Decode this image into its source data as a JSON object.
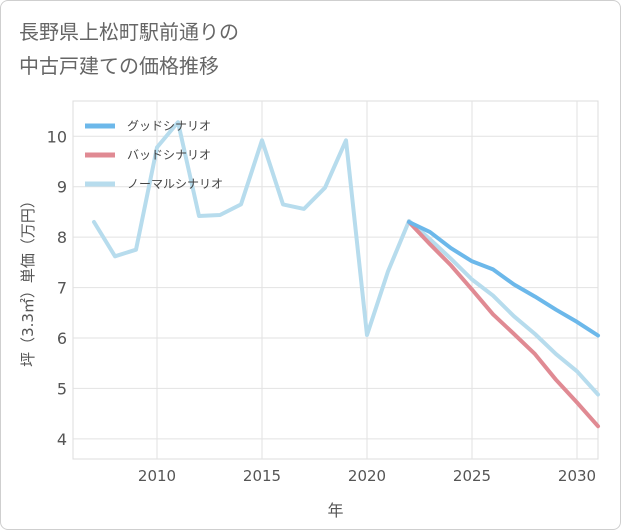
{
  "title": "長野県上松町駅前通りの\n中古戸建ての価格推移",
  "chart_data": {
    "type": "line",
    "title": "長野県上松町駅前通りの中古戸建ての価格推移",
    "xlabel": "年",
    "ylabel": "坪（3.3㎡）単価（万円）",
    "xlim": [
      2006,
      2031
    ],
    "ylim": [
      3.6,
      10.7
    ],
    "xticks": [
      2010,
      2015,
      2020,
      2025,
      2030
    ],
    "yticks": [
      4,
      5,
      6,
      7,
      8,
      9,
      10
    ],
    "grid": true,
    "legend_position": "top-left",
    "series": [
      {
        "name": "グッドシナリオ",
        "color": "#6cb8ea",
        "x": [
          2022,
          2023,
          2024,
          2025,
          2026,
          2027,
          2028,
          2029,
          2030,
          2031
        ],
        "values": [
          8.3,
          8.1,
          7.78,
          7.52,
          7.36,
          7.06,
          6.82,
          6.56,
          6.32,
          6.05
        ]
      },
      {
        "name": "バッドシナリオ",
        "color": "#e08a93",
        "x": [
          2022,
          2023,
          2024,
          2025,
          2026,
          2027,
          2028,
          2029,
          2030,
          2031
        ],
        "values": [
          8.3,
          7.86,
          7.44,
          6.96,
          6.47,
          6.08,
          5.68,
          5.17,
          4.72,
          4.25
        ]
      },
      {
        "name": "ノーマルシナリオ",
        "color": "#b7dced",
        "x": [
          2007,
          2008,
          2009,
          2010,
          2011,
          2012,
          2013,
          2014,
          2015,
          2016,
          2017,
          2018,
          2019,
          2020,
          2021,
          2022,
          2023,
          2024,
          2025,
          2026,
          2027,
          2028,
          2029,
          2030,
          2031
        ],
        "values": [
          8.3,
          7.62,
          7.75,
          9.78,
          10.28,
          8.42,
          8.44,
          8.65,
          9.92,
          8.65,
          8.56,
          8.98,
          9.92,
          6.06,
          7.32,
          8.32,
          7.96,
          7.57,
          7.16,
          6.84,
          6.43,
          6.08,
          5.68,
          5.34,
          4.88
        ]
      }
    ]
  }
}
